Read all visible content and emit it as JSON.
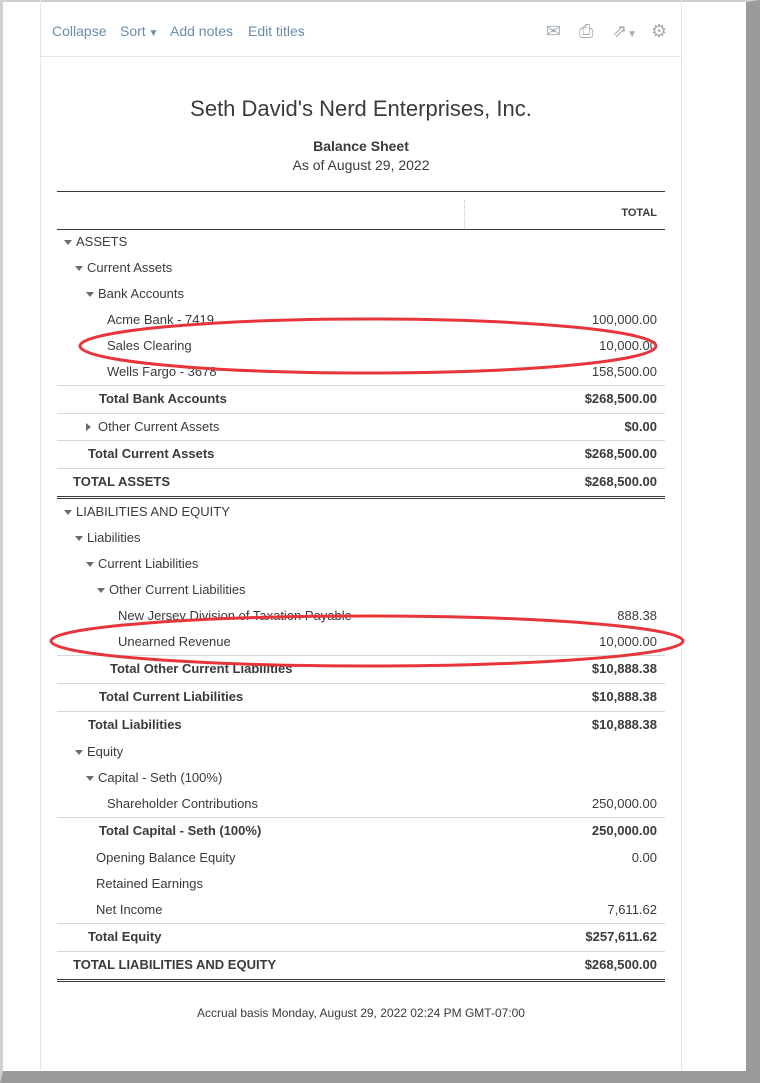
{
  "toolbar": {
    "collapse": "Collapse",
    "sort": "Sort",
    "add_notes": "Add notes",
    "edit_titles": "Edit titles",
    "icons": [
      "email-icon",
      "print-icon",
      "export-icon",
      "settings-icon"
    ]
  },
  "report": {
    "company": "Seth David's Nerd Enterprises, Inc.",
    "title": "Balance Sheet",
    "date": "As of August 29, 2022",
    "column_header": "TOTAL"
  },
  "rows": [
    {
      "label": "ASSETS",
      "level": 0,
      "toggle": "down",
      "value": ""
    },
    {
      "label": "Current Assets",
      "level": 1,
      "toggle": "down",
      "value": ""
    },
    {
      "label": "Bank Accounts",
      "level": 2,
      "toggle": "down",
      "value": ""
    },
    {
      "label": "Acme Bank - 7419",
      "level": 3,
      "value": "100,000.00"
    },
    {
      "label": "Sales Clearing",
      "level": 3,
      "value": "10,000.00",
      "highlighted": true
    },
    {
      "label": "Wells Fargo - 3678",
      "level": 3,
      "value": "158,500.00"
    },
    {
      "label": "Total Bank Accounts",
      "level": 3,
      "value": "$268,500.00",
      "bold": true
    },
    {
      "label": "Other Current Assets",
      "level": 2,
      "toggle": "right",
      "value": "$0.00",
      "boldValue": true
    },
    {
      "label": "Total Current Assets",
      "level": 2,
      "value": "$268,500.00",
      "bold": true
    },
    {
      "label": "TOTAL ASSETS",
      "level": 1,
      "value": "$268,500.00",
      "bold": true,
      "double": true
    },
    {
      "label": "LIABILITIES AND EQUITY",
      "level": 0,
      "toggle": "down",
      "value": ""
    },
    {
      "label": "Liabilities",
      "level": 1,
      "toggle": "down",
      "value": ""
    },
    {
      "label": "Current Liabilities",
      "level": 2,
      "toggle": "down",
      "value": ""
    },
    {
      "label": "Other Current Liabilities",
      "level": 3,
      "toggle": "down",
      "value": ""
    },
    {
      "label": "New Jersey Division of Taxation Payable",
      "level": 4,
      "value": "888.38"
    },
    {
      "label": "Unearned Revenue",
      "level": 4,
      "value": "10,000.00",
      "highlighted": true
    },
    {
      "label": "Total Other Current Liabilities",
      "level": 4,
      "value": "$10,888.38",
      "bold": true
    },
    {
      "label": "Total Current Liabilities",
      "level": 3,
      "value": "$10,888.38",
      "bold": true
    },
    {
      "label": "Total Liabilities",
      "level": 2,
      "value": "$10,888.38",
      "bold": true
    },
    {
      "label": "Equity",
      "level": 1,
      "toggle": "down",
      "value": ""
    },
    {
      "label": "Capital - Seth (100%)",
      "level": 2,
      "toggle": "down",
      "value": ""
    },
    {
      "label": "Shareholder Contributions",
      "level": 3,
      "value": "250,000.00"
    },
    {
      "label": "Total Capital - Seth (100%)",
      "level": 3,
      "value": "250,000.00",
      "bold": true
    },
    {
      "label": "Opening Balance Equity",
      "level": 2,
      "value": "0.00"
    },
    {
      "label": "Retained Earnings",
      "level": 2,
      "value": ""
    },
    {
      "label": "Net Income",
      "level": 2,
      "value": "7,611.62"
    },
    {
      "label": "Total Equity",
      "level": 2,
      "value": "$257,611.62",
      "bold": true
    },
    {
      "label": "TOTAL LIABILITIES AND EQUITY",
      "level": 1,
      "value": "$268,500.00",
      "bold": true,
      "double": true
    }
  ],
  "footer": "Accrual basis  Monday, August 29, 2022  02:24 PM GMT-07:00",
  "colors": {
    "link": "#6b8cae",
    "highlight_ellipse": "#e8353b"
  }
}
